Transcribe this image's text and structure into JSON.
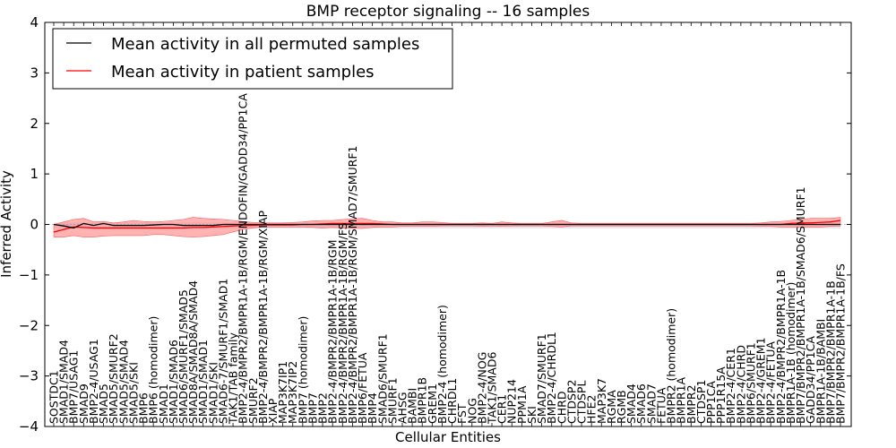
{
  "chart_data": {
    "type": "line",
    "title": "BMP receptor signaling -- 16 samples",
    "xlabel": "Cellular Entities",
    "ylabel": "Inferred Activity",
    "ylim": [
      -4,
      4
    ],
    "yticks": [
      "4",
      "3",
      "2",
      "1",
      "0",
      "−1",
      "−2",
      "−3",
      "−4"
    ],
    "grid": false,
    "legend_position": "top-left",
    "categories": [
      "SOSTDC1",
      "SMAD1/SMAD4",
      "BMP7/USAG1",
      "SMAD9",
      "BMP2-4/USAG1",
      "SMAD5",
      "SMAD5/SMURF2",
      "SMAD5/SMAD4",
      "SMAD5/SKI",
      "BMP6",
      "BMP6 (homodimer)",
      "SMAD1",
      "SMAD1/SMAD6",
      "SMAD6/SMURF1/SMAD5",
      "SMAD8A/SMAD8A/SMAD4",
      "SMAD1/SMAD1",
      "SMAD1/SKI",
      "SMAD6-7/SMURF1/SMAD1",
      "TAK1/TAB family",
      "BMP2-4/BMPR2/BMPR1A-1B/RGM/ENDOFIN/GADD34/PP1CA",
      "SMURF2",
      "BMP2-4/BMPR2/BMPR1A-1B/RGM/XIAP",
      "XIAP",
      "MAP3K7IP1",
      "MAP3K7IP2",
      "BMP7 (homodimer)",
      "BMP7",
      "BMP2",
      "BMP2-4/BMPR2/BMPR1A-1B/RGM",
      "BMP2-4/BMPR2/BMPR1A-1B/RGM/FS",
      "BMP2-4/BMPR2/BMPR1A-1B/RGM/SMAD7/SMURF1",
      "BMP6/FETUA",
      "BMP4",
      "SMAD6/SMURF1",
      "SMURF1",
      "AHSG",
      "BAMBI",
      "BMPR1B",
      "GREM1",
      "BMP2-4 (homodimer)",
      "CHRDL1",
      "FST",
      "NOG",
      "BMP2-4/NOG",
      "TAK1/SMAD6",
      "CER1",
      "NUP214",
      "PPM1A",
      "SKI",
      "SMAD7/SMURF1",
      "BMP2-4/CHRDL1",
      "CHRD",
      "CTDSP2",
      "CTDSPL",
      "HFE2",
      "MAP3K7",
      "RGMA",
      "RGMB",
      "SMAD4",
      "SMAD6",
      "SMAD7",
      "FETUA",
      "BMPR2 (homodimer)",
      "BMPR1A",
      "BMPR2",
      "CTDSP1",
      "PPP1CA",
      "PPP1R15A",
      "BMP2-4/CER1",
      "BMP2-4/CHRD",
      "BMP6/SMURF1",
      "BMP2-4/GREM1",
      "BMP2-4/FETUA",
      "BMP2-4/BMPR2/BMPR1A-1B",
      "BMPR1A-1B (homodimer)",
      "BMP7/BMPR2/BMPR1A-1B/SMAD6/SMURF1",
      "GADD34/PP1CA",
      "BMPR1A-1B/BAMBI",
      "BMP7/BMPR2/BMPR1A-1B",
      "BMP7/BMPR2/BMPR1A-1B/FS"
    ],
    "series": [
      {
        "name": "Mean activity in all permuted samples",
        "color": "#000000",
        "values": [
          0.0,
          -0.03,
          -0.07,
          0.02,
          -0.02,
          0.02,
          -0.02,
          -0.02,
          -0.02,
          -0.02,
          -0.01,
          0.0,
          0.0,
          -0.02,
          -0.02,
          -0.02,
          -0.02,
          0.0,
          0.0,
          0.0,
          0.0,
          0.0,
          0.0,
          0.0,
          0.0,
          0.0,
          0.0,
          0.0,
          0.0,
          0.0,
          0.0,
          0.0,
          0.0,
          0.0,
          0.0,
          0.0,
          0.0,
          0.0,
          0.0,
          0.0,
          0.0,
          0.0,
          0.0,
          0.0,
          0.0,
          0.0,
          0.0,
          0.0,
          0.0,
          0.0,
          0.0,
          0.0,
          0.0,
          0.0,
          0.0,
          0.0,
          0.0,
          0.0,
          0.0,
          0.0,
          0.0,
          0.0,
          0.0,
          0.0,
          0.0,
          0.0,
          0.0,
          0.0,
          0.0,
          0.0,
          0.0,
          0.0,
          0.0,
          0.0,
          0.0,
          0.0,
          0.0,
          0.0,
          0.0,
          0.0
        ]
      },
      {
        "name": "Mean activity in patient samples",
        "color": "#ff0000",
        "values": [
          -0.15,
          -0.1,
          -0.05,
          -0.06,
          -0.07,
          -0.07,
          -0.07,
          -0.07,
          -0.07,
          -0.07,
          -0.07,
          -0.07,
          -0.07,
          -0.07,
          -0.06,
          -0.06,
          -0.05,
          -0.04,
          -0.03,
          -0.02,
          -0.02,
          -0.01,
          -0.01,
          -0.01,
          -0.01,
          0.0,
          0.0,
          0.01,
          0.02,
          0.02,
          0.02,
          0.02,
          0.02,
          0.01,
          0.0,
          0.0,
          0.0,
          0.0,
          0.0,
          0.0,
          0.0,
          0.0,
          0.0,
          0.0,
          0.0,
          0.0,
          0.0,
          0.0,
          0.0,
          0.0,
          0.0,
          0.0,
          0.0,
          0.0,
          0.0,
          0.0,
          0.0,
          0.0,
          0.0,
          0.0,
          0.0,
          0.0,
          0.0,
          0.0,
          0.0,
          0.0,
          0.0,
          0.0,
          0.0,
          0.0,
          0.0,
          0.0,
          0.0,
          0.0,
          0.02,
          0.03,
          0.03,
          0.04,
          0.05,
          0.08
        ],
        "band_upper": [
          0.0,
          0.05,
          0.1,
          0.12,
          0.05,
          0.06,
          0.03,
          0.05,
          0.08,
          0.06,
          0.05,
          0.06,
          0.08,
          0.1,
          0.14,
          0.12,
          0.11,
          0.1,
          0.08,
          0.06,
          0.04,
          0.03,
          0.03,
          0.03,
          0.04,
          0.05,
          0.07,
          0.08,
          0.08,
          0.1,
          0.11,
          0.12,
          0.08,
          0.05,
          0.05,
          0.03,
          0.03,
          0.05,
          0.05,
          0.04,
          0.02,
          0.02,
          0.02,
          0.03,
          0.02,
          0.05,
          0.03,
          0.02,
          0.02,
          0.02,
          0.05,
          0.08,
          0.03,
          0.02,
          0.02,
          0.02,
          0.02,
          0.02,
          0.02,
          0.02,
          0.02,
          0.02,
          0.02,
          0.02,
          0.02,
          0.02,
          0.02,
          0.02,
          0.02,
          0.02,
          0.02,
          0.03,
          0.05,
          0.06,
          0.08,
          0.1,
          0.12,
          0.12,
          0.12,
          0.14
        ],
        "band_lower": [
          -0.25,
          -0.25,
          -0.22,
          -0.25,
          -0.25,
          -0.23,
          -0.22,
          -0.22,
          -0.22,
          -0.22,
          -0.2,
          -0.2,
          -0.22,
          -0.24,
          -0.25,
          -0.24,
          -0.22,
          -0.2,
          -0.15,
          -0.1,
          -0.07,
          -0.05,
          -0.05,
          -0.05,
          -0.05,
          -0.05,
          -0.06,
          -0.07,
          -0.06,
          -0.07,
          -0.08,
          -0.08,
          -0.06,
          -0.05,
          -0.05,
          -0.04,
          -0.04,
          -0.04,
          -0.04,
          -0.03,
          -0.03,
          -0.03,
          -0.03,
          -0.04,
          -0.03,
          -0.04,
          -0.03,
          -0.03,
          -0.03,
          -0.03,
          -0.04,
          -0.05,
          -0.03,
          -0.03,
          -0.03,
          -0.03,
          -0.03,
          -0.03,
          -0.03,
          -0.03,
          -0.03,
          -0.03,
          -0.03,
          -0.03,
          -0.03,
          -0.03,
          -0.03,
          -0.03,
          -0.03,
          -0.03,
          -0.03,
          -0.04,
          -0.04,
          -0.05,
          -0.05,
          -0.05,
          -0.05,
          -0.05,
          -0.04,
          -0.03
        ]
      }
    ],
    "colors": {
      "band_fill": "#ff8080",
      "band_edge": "#ff5a5a",
      "permuted_band": "#ccccdd"
    }
  }
}
